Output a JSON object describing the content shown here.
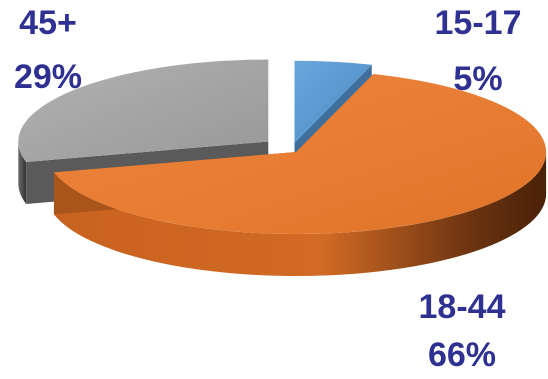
{
  "chart_data": {
    "type": "pie",
    "style": "3d-exploded",
    "title": "",
    "slices": [
      {
        "label": "15-17",
        "value": 5,
        "percent_label": "5%",
        "color": "#5b9bd5",
        "dark_color": "#3f6f9c"
      },
      {
        "label": "18-44",
        "value": 66,
        "percent_label": "66%",
        "color": "#ed7d31",
        "dark_color": "#a9541b"
      },
      {
        "label": "45+",
        "value": 29,
        "percent_label": "29%",
        "color": "#a5a5a5",
        "dark_color": "#5a5a5a"
      }
    ],
    "label_color": "#2e3192",
    "legend": "none"
  }
}
